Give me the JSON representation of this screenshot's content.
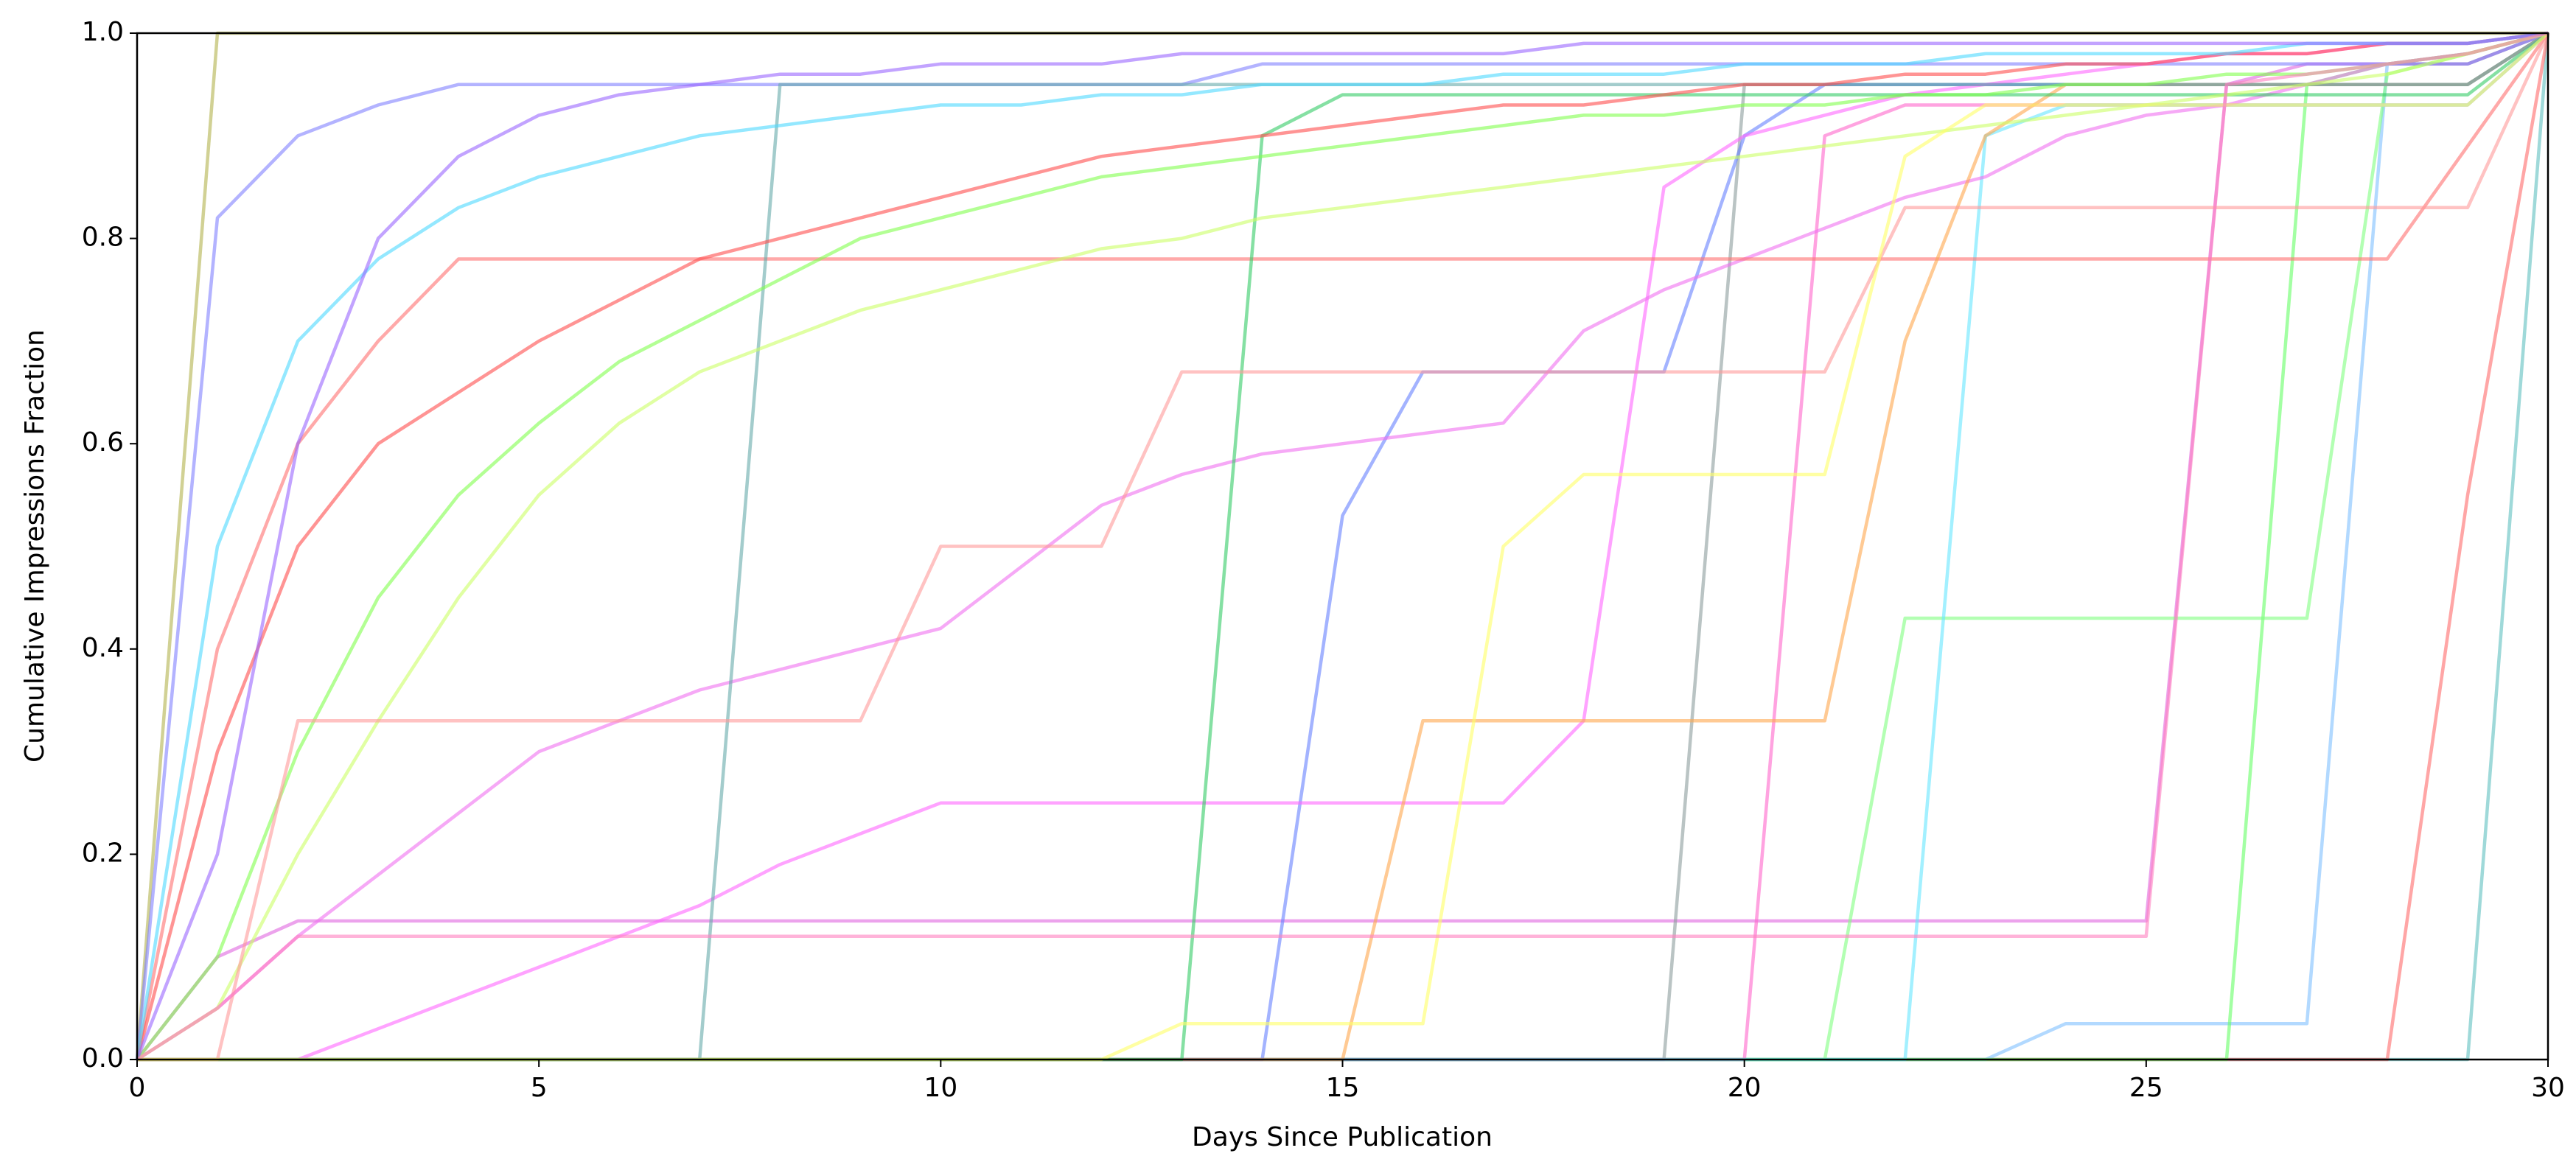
{
  "chart_data": {
    "type": "line",
    "x_label": "Days Since Publication",
    "y_label": "Cumulative Impressions Fraction",
    "x": [
      0,
      1,
      2,
      3,
      4,
      5,
      6,
      7,
      8,
      9,
      10,
      11,
      12,
      13,
      14,
      15,
      16,
      17,
      18,
      19,
      20,
      21,
      22,
      23,
      24,
      25,
      26,
      27,
      28,
      29,
      30
    ],
    "xlim": [
      0,
      30
    ],
    "xticks": [
      0,
      5,
      10,
      15,
      20,
      25,
      30
    ],
    "ylim": [
      0,
      1
    ],
    "yticks": [
      {
        "value": 0,
        "label": "0.0"
      },
      {
        "value": 0.2,
        "label": "0.2"
      },
      {
        "value": 0.4,
        "label": "0.4"
      },
      {
        "value": 0.6,
        "label": "0.6"
      },
      {
        "value": 0.8,
        "label": "0.8"
      },
      {
        "value": 1,
        "label": "1.0"
      }
    ],
    "series": [
      {
        "color": "#5fbfbf",
        "values": [
          0,
          0,
          0,
          0,
          0,
          0,
          0,
          0,
          0,
          0,
          0,
          0,
          0,
          0,
          0,
          0,
          0,
          0,
          0,
          0,
          0,
          0,
          0,
          0,
          0,
          0,
          0,
          0,
          0,
          0,
          1
        ]
      },
      {
        "color": "#ff6b6b",
        "values": [
          0,
          0,
          0,
          0,
          0,
          0,
          0,
          0,
          0,
          0,
          0,
          0,
          0,
          0,
          0,
          0,
          0,
          0,
          0,
          0,
          0,
          0,
          0,
          0,
          0,
          0,
          0,
          0,
          0,
          0.55,
          1
        ]
      },
      {
        "color": "#7fbfff",
        "values": [
          0,
          0,
          0,
          0,
          0,
          0,
          0,
          0,
          0,
          0,
          0,
          0,
          0,
          0,
          0,
          0,
          0,
          0,
          0,
          0,
          0,
          0,
          0,
          0,
          0.035,
          0.035,
          0.035,
          0.035,
          0.97,
          0.98,
          1
        ]
      },
      {
        "color": "#66ff66",
        "values": [
          0,
          0,
          0,
          0,
          0,
          0,
          0,
          0,
          0,
          0,
          0,
          0,
          0,
          0,
          0,
          0,
          0,
          0,
          0,
          0,
          0,
          0,
          0,
          0,
          0,
          0,
          0,
          0.95,
          0.97,
          0.97,
          1
        ]
      },
      {
        "color": "#e066e0",
        "values": [
          0,
          0.1,
          0.135,
          0.135,
          0.135,
          0.135,
          0.135,
          0.135,
          0.135,
          0.135,
          0.135,
          0.135,
          0.135,
          0.135,
          0.135,
          0.135,
          0.135,
          0.135,
          0.135,
          0.135,
          0.135,
          0.135,
          0.135,
          0.135,
          0.135,
          0.135,
          0.95,
          0.97,
          0.97,
          0.97,
          1
        ]
      },
      {
        "color": "#80ff80",
        "values": [
          0,
          0,
          0,
          0,
          0,
          0,
          0,
          0,
          0,
          0,
          0,
          0,
          0,
          0,
          0,
          0,
          0,
          0,
          0,
          0,
          0,
          0,
          0.43,
          0.43,
          0.43,
          0.43,
          0.43,
          0.43,
          0.96,
          0.98,
          1
        ]
      },
      {
        "color": "#8c9c9c",
        "values": [
          0,
          0,
          0,
          0,
          0,
          0,
          0,
          0,
          0,
          0,
          0,
          0,
          0,
          0,
          0,
          0,
          0,
          0,
          0,
          0,
          0.95,
          0.95,
          0.95,
          0.95,
          0.95,
          0.95,
          0.95,
          0.95,
          0.95,
          0.95,
          1
        ]
      },
      {
        "color": "#ff66cc",
        "values": [
          0,
          0,
          0,
          0,
          0,
          0,
          0,
          0,
          0,
          0,
          0,
          0,
          0,
          0,
          0,
          0,
          0,
          0,
          0,
          0,
          0,
          0.9,
          0.93,
          0.93,
          0.93,
          0.93,
          0.93,
          0.93,
          0.93,
          0.93,
          1
        ]
      },
      {
        "color": "#66e6ff",
        "values": [
          0,
          0,
          0,
          0,
          0,
          0,
          0,
          0,
          0,
          0,
          0,
          0,
          0,
          0,
          0,
          0,
          0,
          0,
          0,
          0,
          0,
          0,
          0,
          0.9,
          0.93,
          0.93,
          0.93,
          0.93,
          0.93,
          0.93,
          1
        ]
      },
      {
        "color": "#6680ff",
        "values": [
          0,
          0,
          0,
          0,
          0,
          0,
          0,
          0,
          0,
          0,
          0,
          0,
          0,
          0,
          0,
          0.53,
          0.67,
          0.67,
          0.67,
          0.67,
          0.9,
          0.95,
          0.95,
          0.95,
          0.95,
          0.95,
          0.95,
          0.95,
          0.95,
          0.95,
          1
        ]
      },
      {
        "color": "#b3b34d",
        "values": [
          0,
          1,
          1,
          1,
          1,
          1,
          1,
          1,
          1,
          1,
          1,
          1,
          1,
          1,
          1,
          1,
          1,
          1,
          1,
          1,
          1,
          1,
          1,
          1,
          1,
          1,
          1,
          1,
          1,
          1,
          1
        ]
      },
      {
        "color": "#8080ff",
        "values": [
          0,
          0.82,
          0.9,
          0.93,
          0.95,
          0.95,
          0.95,
          0.95,
          0.95,
          0.95,
          0.95,
          0.95,
          0.95,
          0.95,
          0.97,
          0.97,
          0.97,
          0.97,
          0.97,
          0.97,
          0.97,
          0.97,
          0.97,
          0.97,
          0.97,
          0.97,
          0.97,
          0.97,
          0.97,
          0.97,
          1
        ]
      },
      {
        "color": "#ff66ff",
        "values": [
          0,
          0,
          0,
          0.03,
          0.06,
          0.09,
          0.12,
          0.15,
          0.19,
          0.22,
          0.25,
          0.25,
          0.25,
          0.25,
          0.25,
          0.25,
          0.25,
          0.25,
          0.33,
          0.85,
          0.9,
          0.92,
          0.94,
          0.95,
          0.96,
          0.97,
          0.98,
          0.98,
          0.99,
          0.99,
          1
        ]
      },
      {
        "color": "#f070f0",
        "values": [
          0,
          0.05,
          0.12,
          0.18,
          0.24,
          0.3,
          0.33,
          0.36,
          0.38,
          0.4,
          0.42,
          0.48,
          0.54,
          0.57,
          0.59,
          0.6,
          0.61,
          0.62,
          0.71,
          0.75,
          0.78,
          0.81,
          0.84,
          0.86,
          0.9,
          0.92,
          0.93,
          0.95,
          0.97,
          0.98,
          1
        ]
      },
      {
        "color": "#ff7070",
        "values": [
          0,
          0.4,
          0.6,
          0.7,
          0.78,
          0.78,
          0.78,
          0.78,
          0.78,
          0.78,
          0.78,
          0.78,
          0.78,
          0.78,
          0.78,
          0.78,
          0.78,
          0.78,
          0.78,
          0.78,
          0.78,
          0.78,
          0.78,
          0.78,
          0.78,
          0.78,
          0.78,
          0.78,
          0.78,
          0.89,
          1
        ]
      },
      {
        "color": "#ffa64d",
        "values": [
          0,
          0,
          0,
          0,
          0,
          0,
          0,
          0,
          0,
          0,
          0,
          0,
          0,
          0,
          0,
          0,
          0.33,
          0.33,
          0.33,
          0.33,
          0.33,
          0.33,
          0.7,
          0.9,
          0.95,
          0.95,
          0.95,
          0.95,
          0.95,
          0.95,
          1
        ]
      },
      {
        "color": "#33cc66",
        "values": [
          0,
          0,
          0,
          0,
          0,
          0,
          0,
          0,
          0,
          0,
          0,
          0,
          0,
          0,
          0.9,
          0.94,
          0.94,
          0.94,
          0.94,
          0.94,
          0.94,
          0.94,
          0.94,
          0.94,
          0.94,
          0.94,
          0.94,
          0.94,
          0.94,
          0.94,
          1
        ]
      },
      {
        "color": "#66aaaa",
        "values": [
          0,
          0,
          0,
          0,
          0,
          0,
          0,
          0,
          0.95,
          0.95,
          0.95,
          0.95,
          0.95,
          0.95,
          0.95,
          0.95,
          0.95,
          0.95,
          0.95,
          0.95,
          0.95,
          0.95,
          0.95,
          0.95,
          0.95,
          0.95,
          0.95,
          0.95,
          0.95,
          0.95,
          1
        ]
      },
      {
        "color": "#ff4d4d",
        "values": [
          0,
          0.3,
          0.5,
          0.6,
          0.65,
          0.7,
          0.74,
          0.78,
          0.8,
          0.82,
          0.84,
          0.86,
          0.88,
          0.89,
          0.9,
          0.91,
          0.92,
          0.93,
          0.93,
          0.94,
          0.95,
          0.95,
          0.96,
          0.96,
          0.97,
          0.97,
          0.98,
          0.98,
          0.99,
          0.99,
          1
        ]
      },
      {
        "color": "#4dd9ff",
        "values": [
          0,
          0.5,
          0.7,
          0.78,
          0.83,
          0.86,
          0.88,
          0.9,
          0.91,
          0.92,
          0.93,
          0.93,
          0.94,
          0.94,
          0.95,
          0.95,
          0.95,
          0.96,
          0.96,
          0.96,
          0.97,
          0.97,
          0.97,
          0.98,
          0.98,
          0.98,
          0.98,
          0.99,
          0.99,
          0.99,
          1
        ]
      },
      {
        "color": "#80ff4d",
        "values": [
          0,
          0.1,
          0.3,
          0.45,
          0.55,
          0.62,
          0.68,
          0.72,
          0.76,
          0.8,
          0.82,
          0.84,
          0.86,
          0.87,
          0.88,
          0.89,
          0.9,
          0.91,
          0.92,
          0.92,
          0.93,
          0.93,
          0.94,
          0.94,
          0.95,
          0.95,
          0.96,
          0.96,
          0.97,
          0.98,
          1
        ]
      },
      {
        "color": "#ccff66",
        "values": [
          0,
          0.05,
          0.2,
          0.33,
          0.45,
          0.55,
          0.62,
          0.67,
          0.7,
          0.73,
          0.75,
          0.77,
          0.79,
          0.8,
          0.82,
          0.83,
          0.84,
          0.85,
          0.86,
          0.87,
          0.88,
          0.89,
          0.9,
          0.91,
          0.92,
          0.93,
          0.94,
          0.95,
          0.96,
          0.98,
          1
        ]
      },
      {
        "color": "#9966ff",
        "values": [
          0,
          0.2,
          0.6,
          0.8,
          0.88,
          0.92,
          0.94,
          0.95,
          0.96,
          0.96,
          0.97,
          0.97,
          0.97,
          0.98,
          0.98,
          0.98,
          0.98,
          0.98,
          0.99,
          0.99,
          0.99,
          0.99,
          0.99,
          0.99,
          0.99,
          0.99,
          0.99,
          0.99,
          0.99,
          0.99,
          1
        ]
      },
      {
        "color": "#ff9999",
        "values": [
          0,
          0,
          0.33,
          0.33,
          0.33,
          0.33,
          0.33,
          0.33,
          0.33,
          0.33,
          0.5,
          0.5,
          0.5,
          0.67,
          0.67,
          0.67,
          0.67,
          0.67,
          0.67,
          0.67,
          0.67,
          0.67,
          0.83,
          0.83,
          0.83,
          0.83,
          0.83,
          0.83,
          0.83,
          0.83,
          1
        ]
      },
      {
        "color": "#ffff66",
        "values": [
          0,
          0,
          0,
          0,
          0,
          0,
          0,
          0,
          0,
          0,
          0,
          0,
          0,
          0.035,
          0.035,
          0.035,
          0.035,
          0.5,
          0.57,
          0.57,
          0.57,
          0.57,
          0.88,
          0.93,
          0.93,
          0.93,
          0.93,
          0.93,
          0.93,
          0.93,
          1
        ]
      },
      {
        "color": "#ff80bf",
        "values": [
          0,
          0.05,
          0.12,
          0.12,
          0.12,
          0.12,
          0.12,
          0.12,
          0.12,
          0.12,
          0.12,
          0.12,
          0.12,
          0.12,
          0.12,
          0.12,
          0.12,
          0.12,
          0.12,
          0.12,
          0.12,
          0.12,
          0.12,
          0.12,
          0.12,
          0.12,
          0.95,
          0.96,
          0.97,
          0.98,
          1
        ]
      }
    ]
  }
}
